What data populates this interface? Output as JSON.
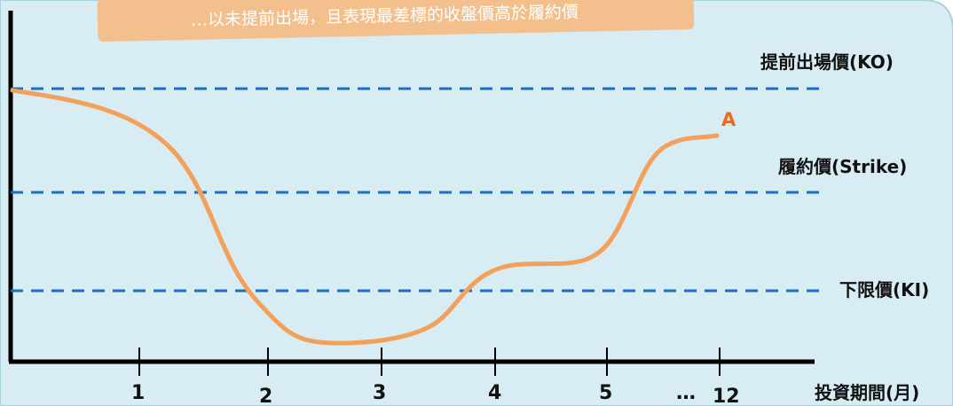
{
  "colors": {
    "background": "#d8ecf3",
    "frame": "#a9d2df",
    "axis": "#000000",
    "dashed_line": "#1a6fc4",
    "curve": "#f2a05a",
    "curve_label": "#ea6a1a",
    "banner": "#f3bf8c",
    "banner_text": "#ffffff"
  },
  "banner": {
    "text": "…以未提前出場，且表現最差標的收盤價高於履約價"
  },
  "levels": [
    {
      "id": "ko",
      "label": "提前出場價(KO)"
    },
    {
      "id": "strike",
      "label": "履約價(Strike)"
    },
    {
      "id": "ki",
      "label": "下限價(KI)"
    }
  ],
  "x_axis": {
    "label": "投資期間(月)",
    "ticks": [
      "1",
      "2",
      "3",
      "4",
      "5",
      "12"
    ],
    "ellipsis": "…"
  },
  "curve": {
    "label": "A"
  }
}
